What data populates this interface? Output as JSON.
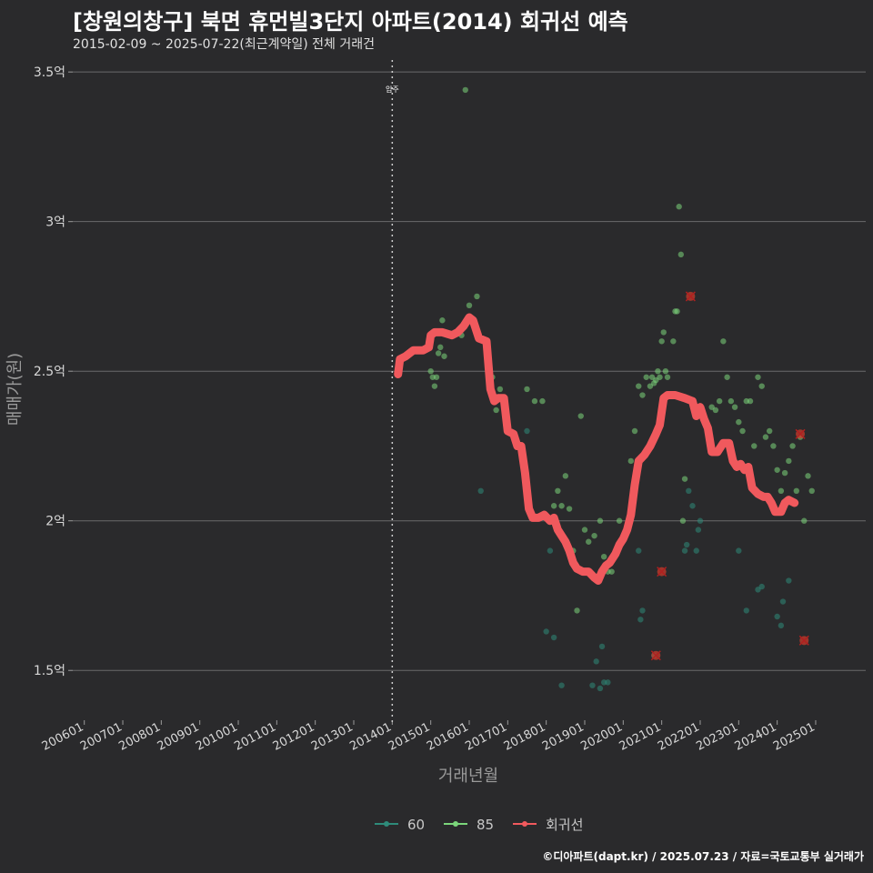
{
  "header": {
    "title": "[창원의창구] 북면 휴먼빌3단지 아파트(2014) 회귀선 예측",
    "subtitle": "2015-02-09 ~ 2025-07-22(최근계약일) 전체 거래건"
  },
  "footer": {
    "credit": "©디아파트(dapt.kr) / 2025.07.23 / 자료=국토교통부 실거래가"
  },
  "colors": {
    "background": "#2a2a2c",
    "grid": "#6b6b6b",
    "series_60": "#2e8b7a",
    "series_85": "#7bd67b",
    "regression": "#f0595d",
    "outlier": "#d23a2a"
  },
  "chart_data": {
    "type": "scatter",
    "xlabel": "거래년월",
    "ylabel": "매매가(원)",
    "x_unit": "decimal year",
    "xlim": [
      2005.7,
      2026.3
    ],
    "ylim": [
      1.37,
      3.54
    ],
    "x_ticks": [
      {
        "label": "200601",
        "value": 2006.0
      },
      {
        "label": "200701",
        "value": 2007.0
      },
      {
        "label": "200801",
        "value": 2008.0
      },
      {
        "label": "200901",
        "value": 2009.0
      },
      {
        "label": "201001",
        "value": 2010.0
      },
      {
        "label": "201101",
        "value": 2011.0
      },
      {
        "label": "201201",
        "value": 2012.0
      },
      {
        "label": "201301",
        "value": 2013.0
      },
      {
        "label": "201401",
        "value": 2014.0
      },
      {
        "label": "201501",
        "value": 2015.0
      },
      {
        "label": "201601",
        "value": 2016.0
      },
      {
        "label": "201701",
        "value": 2017.0
      },
      {
        "label": "201801",
        "value": 2018.0
      },
      {
        "label": "201901",
        "value": 2019.0
      },
      {
        "label": "202001",
        "value": 2020.0
      },
      {
        "label": "202101",
        "value": 2021.0
      },
      {
        "label": "202201",
        "value": 2022.0
      },
      {
        "label": "202301",
        "value": 2023.0
      },
      {
        "label": "202401",
        "value": 2024.0
      },
      {
        "label": "202501",
        "value": 2025.0
      }
    ],
    "y_ticks": [
      {
        "label": "1.5억",
        "value": 1.5
      },
      {
        "label": "2억",
        "value": 2.0
      },
      {
        "label": "2.5억",
        "value": 2.5
      },
      {
        "label": "3억",
        "value": 3.0
      },
      {
        "label": "3.5억",
        "value": 3.5
      }
    ],
    "annotation": {
      "label": "입주",
      "x": 2014.0
    },
    "legend": {
      "position": "bottom",
      "items": [
        {
          "label": "60",
          "key": "series_60"
        },
        {
          "label": "85",
          "key": "series_85"
        },
        {
          "label": "회귀선",
          "key": "regression"
        }
      ]
    },
    "series": [
      {
        "name": "60",
        "points": [
          [
            2016.3,
            2.1
          ],
          [
            2017.5,
            2.3
          ],
          [
            2018.0,
            1.63
          ],
          [
            2018.1,
            1.9
          ],
          [
            2018.2,
            1.61
          ],
          [
            2018.4,
            1.45
          ],
          [
            2019.2,
            1.45
          ],
          [
            2019.3,
            1.53
          ],
          [
            2019.4,
            1.44
          ],
          [
            2019.45,
            1.58
          ],
          [
            2019.5,
            1.46
          ],
          [
            2019.6,
            1.46
          ],
          [
            2020.4,
            1.9
          ],
          [
            2020.45,
            1.67
          ],
          [
            2020.5,
            1.7
          ],
          [
            2020.8,
            1.55
          ],
          [
            2021.6,
            1.9
          ],
          [
            2021.65,
            1.92
          ],
          [
            2021.7,
            2.1
          ],
          [
            2021.8,
            2.05
          ],
          [
            2021.9,
            1.9
          ],
          [
            2021.95,
            1.97
          ],
          [
            2022.0,
            2.0
          ],
          [
            2023.0,
            1.9
          ],
          [
            2023.2,
            1.7
          ],
          [
            2023.5,
            1.77
          ],
          [
            2023.6,
            1.78
          ],
          [
            2024.0,
            1.68
          ],
          [
            2024.1,
            1.65
          ],
          [
            2024.15,
            1.73
          ],
          [
            2024.3,
            1.8
          ]
        ]
      },
      {
        "name": "85",
        "points": [
          [
            2015.0,
            2.5
          ],
          [
            2015.05,
            2.48
          ],
          [
            2015.1,
            2.45
          ],
          [
            2015.15,
            2.48
          ],
          [
            2015.2,
            2.56
          ],
          [
            2015.25,
            2.58
          ],
          [
            2015.3,
            2.67
          ],
          [
            2015.35,
            2.55
          ],
          [
            2015.8,
            2.62
          ],
          [
            2015.9,
            3.44
          ],
          [
            2016.0,
            2.72
          ],
          [
            2016.2,
            2.75
          ],
          [
            2016.5,
            2.5
          ],
          [
            2016.6,
            2.48
          ],
          [
            2016.7,
            2.37
          ],
          [
            2016.8,
            2.44
          ],
          [
            2017.2,
            2.28
          ],
          [
            2017.5,
            2.44
          ],
          [
            2017.7,
            2.4
          ],
          [
            2017.9,
            2.4
          ],
          [
            2018.2,
            2.05
          ],
          [
            2018.3,
            2.1
          ],
          [
            2018.4,
            2.05
          ],
          [
            2018.5,
            2.15
          ],
          [
            2018.6,
            2.04
          ],
          [
            2018.7,
            1.9
          ],
          [
            2018.8,
            1.7
          ],
          [
            2018.9,
            2.35
          ],
          [
            2019.0,
            1.97
          ],
          [
            2019.1,
            1.93
          ],
          [
            2019.25,
            1.95
          ],
          [
            2019.4,
            2.0
          ],
          [
            2019.5,
            1.88
          ],
          [
            2019.6,
            1.83
          ],
          [
            2019.7,
            1.83
          ],
          [
            2019.9,
            2.0
          ],
          [
            2020.2,
            2.2
          ],
          [
            2020.3,
            2.3
          ],
          [
            2020.4,
            2.45
          ],
          [
            2020.5,
            2.42
          ],
          [
            2020.6,
            2.48
          ],
          [
            2020.7,
            2.45
          ],
          [
            2020.75,
            2.48
          ],
          [
            2020.8,
            2.46
          ],
          [
            2020.85,
            2.47
          ],
          [
            2020.9,
            2.5
          ],
          [
            2020.95,
            2.48
          ],
          [
            2021.0,
            2.6
          ],
          [
            2021.05,
            2.63
          ],
          [
            2021.1,
            2.5
          ],
          [
            2021.15,
            2.48
          ],
          [
            2021.2,
            2.42
          ],
          [
            2021.3,
            2.6
          ],
          [
            2021.35,
            2.7
          ],
          [
            2021.4,
            2.7
          ],
          [
            2021.45,
            3.05
          ],
          [
            2021.5,
            2.89
          ],
          [
            2021.55,
            2.0
          ],
          [
            2021.6,
            2.14
          ],
          [
            2022.3,
            2.38
          ],
          [
            2022.4,
            2.37
          ],
          [
            2022.5,
            2.4
          ],
          [
            2022.6,
            2.6
          ],
          [
            2022.7,
            2.48
          ],
          [
            2022.8,
            2.4
          ],
          [
            2022.9,
            2.38
          ],
          [
            2023.0,
            2.33
          ],
          [
            2023.1,
            2.3
          ],
          [
            2023.2,
            2.4
          ],
          [
            2023.3,
            2.4
          ],
          [
            2023.4,
            2.25
          ],
          [
            2023.5,
            2.48
          ],
          [
            2023.6,
            2.45
          ],
          [
            2023.7,
            2.28
          ],
          [
            2023.8,
            2.3
          ],
          [
            2023.9,
            2.25
          ],
          [
            2024.0,
            2.17
          ],
          [
            2024.1,
            2.1
          ],
          [
            2024.2,
            2.16
          ],
          [
            2024.3,
            2.2
          ],
          [
            2024.4,
            2.25
          ],
          [
            2024.5,
            2.1
          ],
          [
            2024.6,
            2.28
          ],
          [
            2024.7,
            2.0
          ],
          [
            2024.8,
            2.15
          ],
          [
            2024.9,
            2.1
          ]
        ]
      }
    ],
    "outliers": [
      [
        2020.85,
        1.55
      ],
      [
        2021.0,
        1.83
      ],
      [
        2021.75,
        2.75
      ],
      [
        2024.6,
        2.29
      ],
      [
        2024.7,
        1.6
      ]
    ],
    "regression": [
      [
        2014.15,
        2.49
      ],
      [
        2014.2,
        2.54
      ],
      [
        2014.35,
        2.55
      ],
      [
        2014.55,
        2.57
      ],
      [
        2014.8,
        2.57
      ],
      [
        2014.95,
        2.58
      ],
      [
        2015.0,
        2.62
      ],
      [
        2015.1,
        2.63
      ],
      [
        2015.3,
        2.63
      ],
      [
        2015.55,
        2.62
      ],
      [
        2015.7,
        2.63
      ],
      [
        2015.85,
        2.65
      ],
      [
        2016.0,
        2.68
      ],
      [
        2016.1,
        2.67
      ],
      [
        2016.25,
        2.61
      ],
      [
        2016.45,
        2.6
      ],
      [
        2016.55,
        2.44
      ],
      [
        2016.65,
        2.4
      ],
      [
        2016.75,
        2.41
      ],
      [
        2016.9,
        2.41
      ],
      [
        2017.0,
        2.3
      ],
      [
        2017.15,
        2.29
      ],
      [
        2017.25,
        2.25
      ],
      [
        2017.35,
        2.25
      ],
      [
        2017.45,
        2.16
      ],
      [
        2017.55,
        2.04
      ],
      [
        2017.65,
        2.01
      ],
      [
        2017.8,
        2.01
      ],
      [
        2017.95,
        2.02
      ],
      [
        2018.1,
        2.0
      ],
      [
        2018.2,
        2.01
      ],
      [
        2018.3,
        1.97
      ],
      [
        2018.4,
        1.95
      ],
      [
        2018.5,
        1.93
      ],
      [
        2018.6,
        1.9
      ],
      [
        2018.7,
        1.86
      ],
      [
        2018.8,
        1.84
      ],
      [
        2018.95,
        1.83
      ],
      [
        2019.1,
        1.83
      ],
      [
        2019.25,
        1.81
      ],
      [
        2019.35,
        1.8
      ],
      [
        2019.45,
        1.83
      ],
      [
        2019.55,
        1.85
      ],
      [
        2019.65,
        1.86
      ],
      [
        2019.8,
        1.89
      ],
      [
        2019.9,
        1.92
      ],
      [
        2020.0,
        1.94
      ],
      [
        2020.1,
        1.97
      ],
      [
        2020.2,
        2.02
      ],
      [
        2020.3,
        2.12
      ],
      [
        2020.4,
        2.2
      ],
      [
        2020.55,
        2.22
      ],
      [
        2020.7,
        2.25
      ],
      [
        2020.85,
        2.29
      ],
      [
        2020.95,
        2.32
      ],
      [
        2021.05,
        2.41
      ],
      [
        2021.15,
        2.42
      ],
      [
        2021.35,
        2.42
      ],
      [
        2021.6,
        2.41
      ],
      [
        2021.8,
        2.4
      ],
      [
        2021.9,
        2.35
      ],
      [
        2022.0,
        2.38
      ],
      [
        2022.1,
        2.34
      ],
      [
        2022.2,
        2.31
      ],
      [
        2022.3,
        2.23
      ],
      [
        2022.45,
        2.23
      ],
      [
        2022.6,
        2.26
      ],
      [
        2022.75,
        2.26
      ],
      [
        2022.85,
        2.2
      ],
      [
        2022.95,
        2.18
      ],
      [
        2023.05,
        2.19
      ],
      [
        2023.15,
        2.17
      ],
      [
        2023.25,
        2.18
      ],
      [
        2023.35,
        2.11
      ],
      [
        2023.5,
        2.09
      ],
      [
        2023.65,
        2.08
      ],
      [
        2023.75,
        2.08
      ],
      [
        2023.85,
        2.06
      ],
      [
        2023.95,
        2.03
      ],
      [
        2024.1,
        2.03
      ],
      [
        2024.2,
        2.06
      ],
      [
        2024.3,
        2.07
      ],
      [
        2024.45,
        2.06
      ]
    ]
  }
}
